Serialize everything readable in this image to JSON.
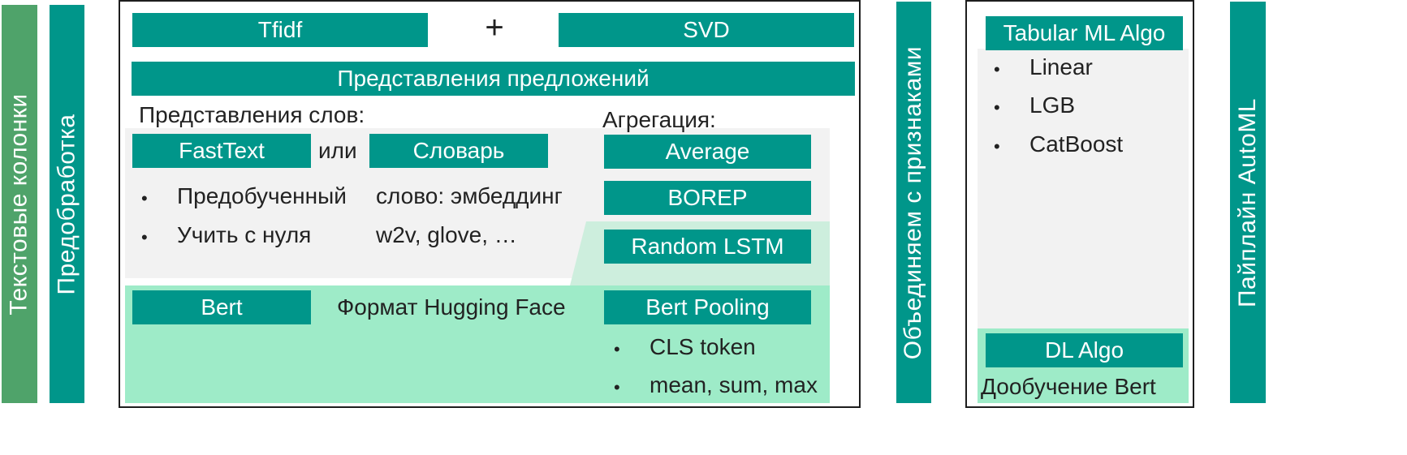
{
  "colors": {
    "teal": "#00968a",
    "green_bar": "#4fa36a",
    "gray_panel": "#f2f2f2",
    "mint_panel": "#9eebc8",
    "mint_light": "#cdeedd"
  },
  "left": {
    "text_columns": "Текстовые колонки",
    "preprocessing": "Предобработка"
  },
  "top_row": {
    "tfidf": "Tfidf",
    "plus": "+",
    "svd": "SVD",
    "sentence_repr": "Представления предложений"
  },
  "words": {
    "title": "Представления слов:",
    "fasttext": "FastText",
    "or": "или",
    "dictionary": "Словарь",
    "bullets": [
      "Предобученный",
      "Учить с нуля"
    ],
    "dict_lines": [
      "слово: эмбеддинг",
      "w2v, glove, …"
    ],
    "bullet_char": "•"
  },
  "aggregation": {
    "title": "Агрегация:",
    "items": [
      "Average",
      "BOREP",
      "Random LSTM"
    ]
  },
  "bert_row": {
    "bert": "Bert",
    "format": "Формат Hugging Face",
    "pooling": "Bert Pooling",
    "pooling_bullets": [
      "CLS token",
      "mean, sum, max"
    ]
  },
  "merge": "Объединяем с признаками",
  "algos": {
    "tabular": "Tabular ML Algo",
    "items": [
      "Linear",
      "LGB",
      "CatBoost"
    ],
    "dl": "DL Algo",
    "dl_note": "Дообучение Bert"
  },
  "pipeline": "Пайплайн AutoML"
}
